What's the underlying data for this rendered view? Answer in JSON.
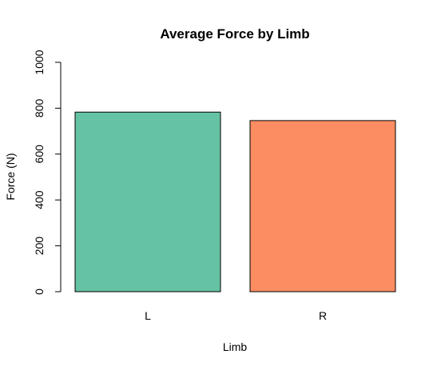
{
  "chart_data": {
    "type": "bar",
    "title": "Average Force by Limb",
    "xlabel": "Limb",
    "ylabel": "Force (N)",
    "categories": [
      "L",
      "R"
    ],
    "values": [
      783,
      746
    ],
    "colors": [
      "#66C2A5",
      "#FC8D62"
    ],
    "ylim": [
      0,
      1000
    ],
    "yticks": [
      0,
      200,
      400,
      600,
      800,
      1000
    ],
    "grid": false,
    "legend": "none"
  }
}
